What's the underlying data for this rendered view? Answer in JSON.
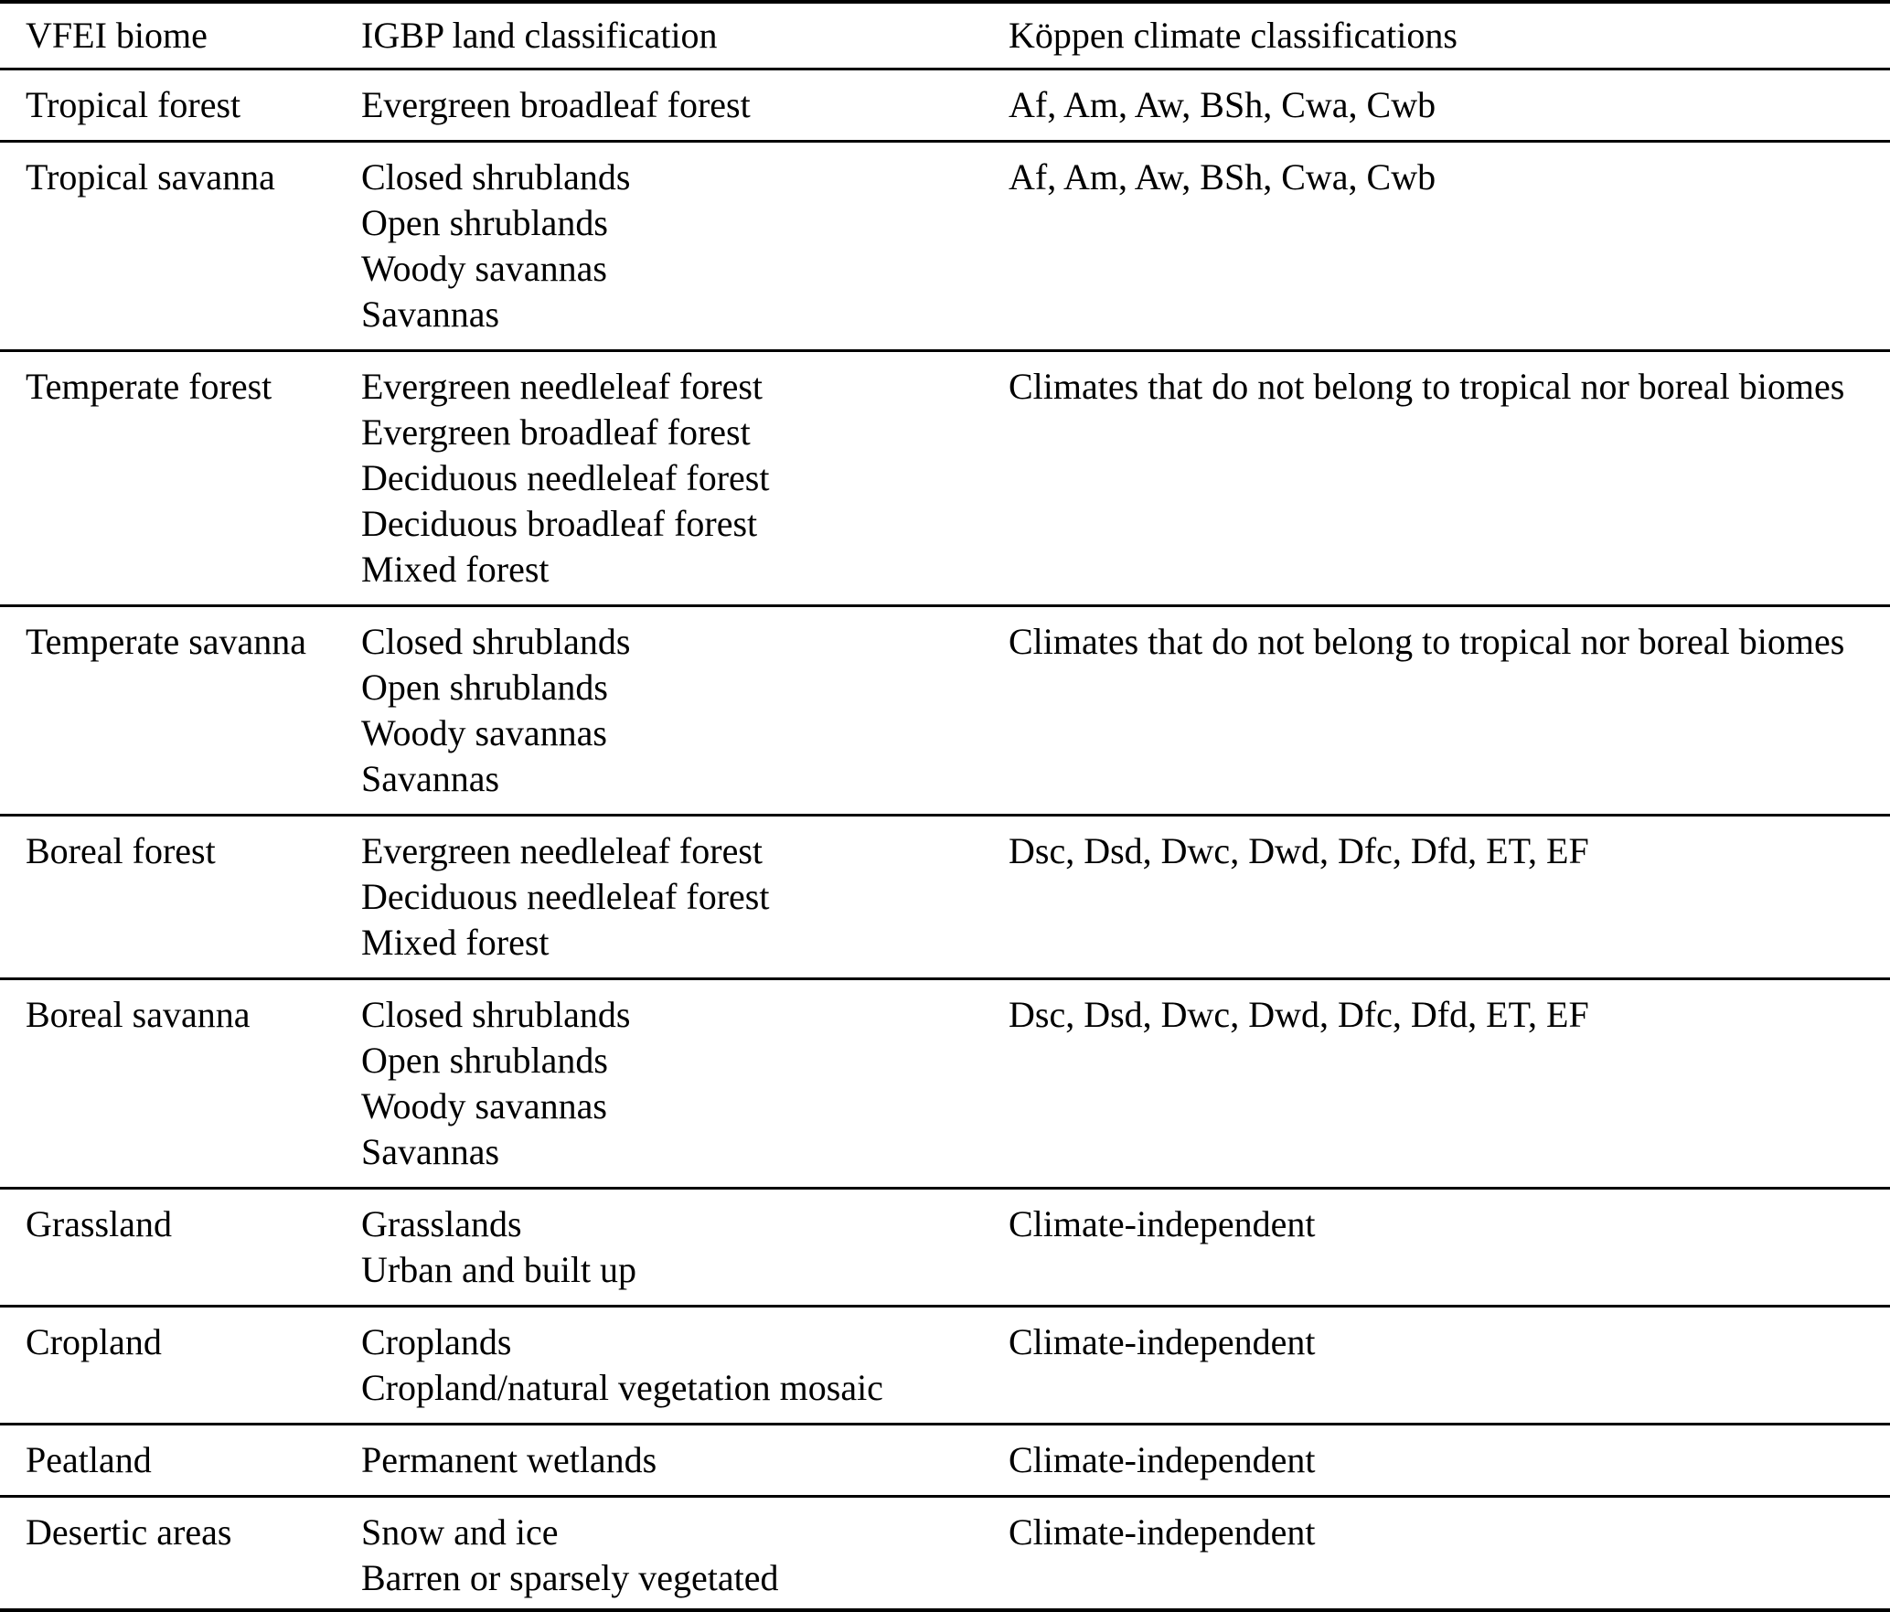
{
  "table": {
    "columns": {
      "biome": "VFEI biome",
      "igbp": "IGBP land classification",
      "koppen": "Köppen climate classifications"
    },
    "rows": [
      {
        "biome": "Tropical forest",
        "igbp": [
          "Evergreen broadleaf forest"
        ],
        "koppen": "Af, Am, Aw, BSh, Cwa, Cwb"
      },
      {
        "biome": "Tropical savanna",
        "igbp": [
          "Closed shrublands",
          "Open shrublands",
          "Woody savannas",
          "Savannas"
        ],
        "koppen": "Af, Am, Aw, BSh, Cwa, Cwb"
      },
      {
        "biome": "Temperate forest",
        "igbp": [
          "Evergreen needleleaf forest",
          "Evergreen broadleaf forest",
          "Deciduous needleleaf forest",
          "Deciduous broadleaf forest",
          "Mixed forest"
        ],
        "koppen": "Climates that do not belong to tropical nor boreal biomes"
      },
      {
        "biome": "Temperate savanna",
        "igbp": [
          "Closed shrublands",
          "Open shrublands",
          "Woody savannas",
          "Savannas"
        ],
        "koppen": "Climates that do not belong to tropical nor boreal biomes"
      },
      {
        "biome": "Boreal forest",
        "igbp": [
          "Evergreen needleleaf forest",
          "Deciduous needleleaf forest",
          "Mixed forest"
        ],
        "koppen": "Dsc, Dsd, Dwc, Dwd, Dfc, Dfd, ET, EF"
      },
      {
        "biome": "Boreal savanna",
        "igbp": [
          "Closed shrublands",
          "Open shrublands",
          "Woody savannas",
          "Savannas"
        ],
        "koppen": "Dsc, Dsd, Dwc, Dwd, Dfc, Dfd, ET, EF"
      },
      {
        "biome": "Grassland",
        "igbp": [
          "Grasslands",
          "Urban and built up"
        ],
        "koppen": "Climate-independent"
      },
      {
        "biome": "Cropland",
        "igbp": [
          "Croplands",
          "Cropland/natural vegetation mosaic"
        ],
        "koppen": "Climate-independent"
      },
      {
        "biome": "Peatland",
        "igbp": [
          "Permanent wetlands"
        ],
        "koppen": "Climate-independent"
      },
      {
        "biome": "Desertic areas",
        "igbp": [
          "Snow and ice",
          "Barren or sparsely vegetated"
        ],
        "koppen": "Climate-independent"
      }
    ]
  }
}
